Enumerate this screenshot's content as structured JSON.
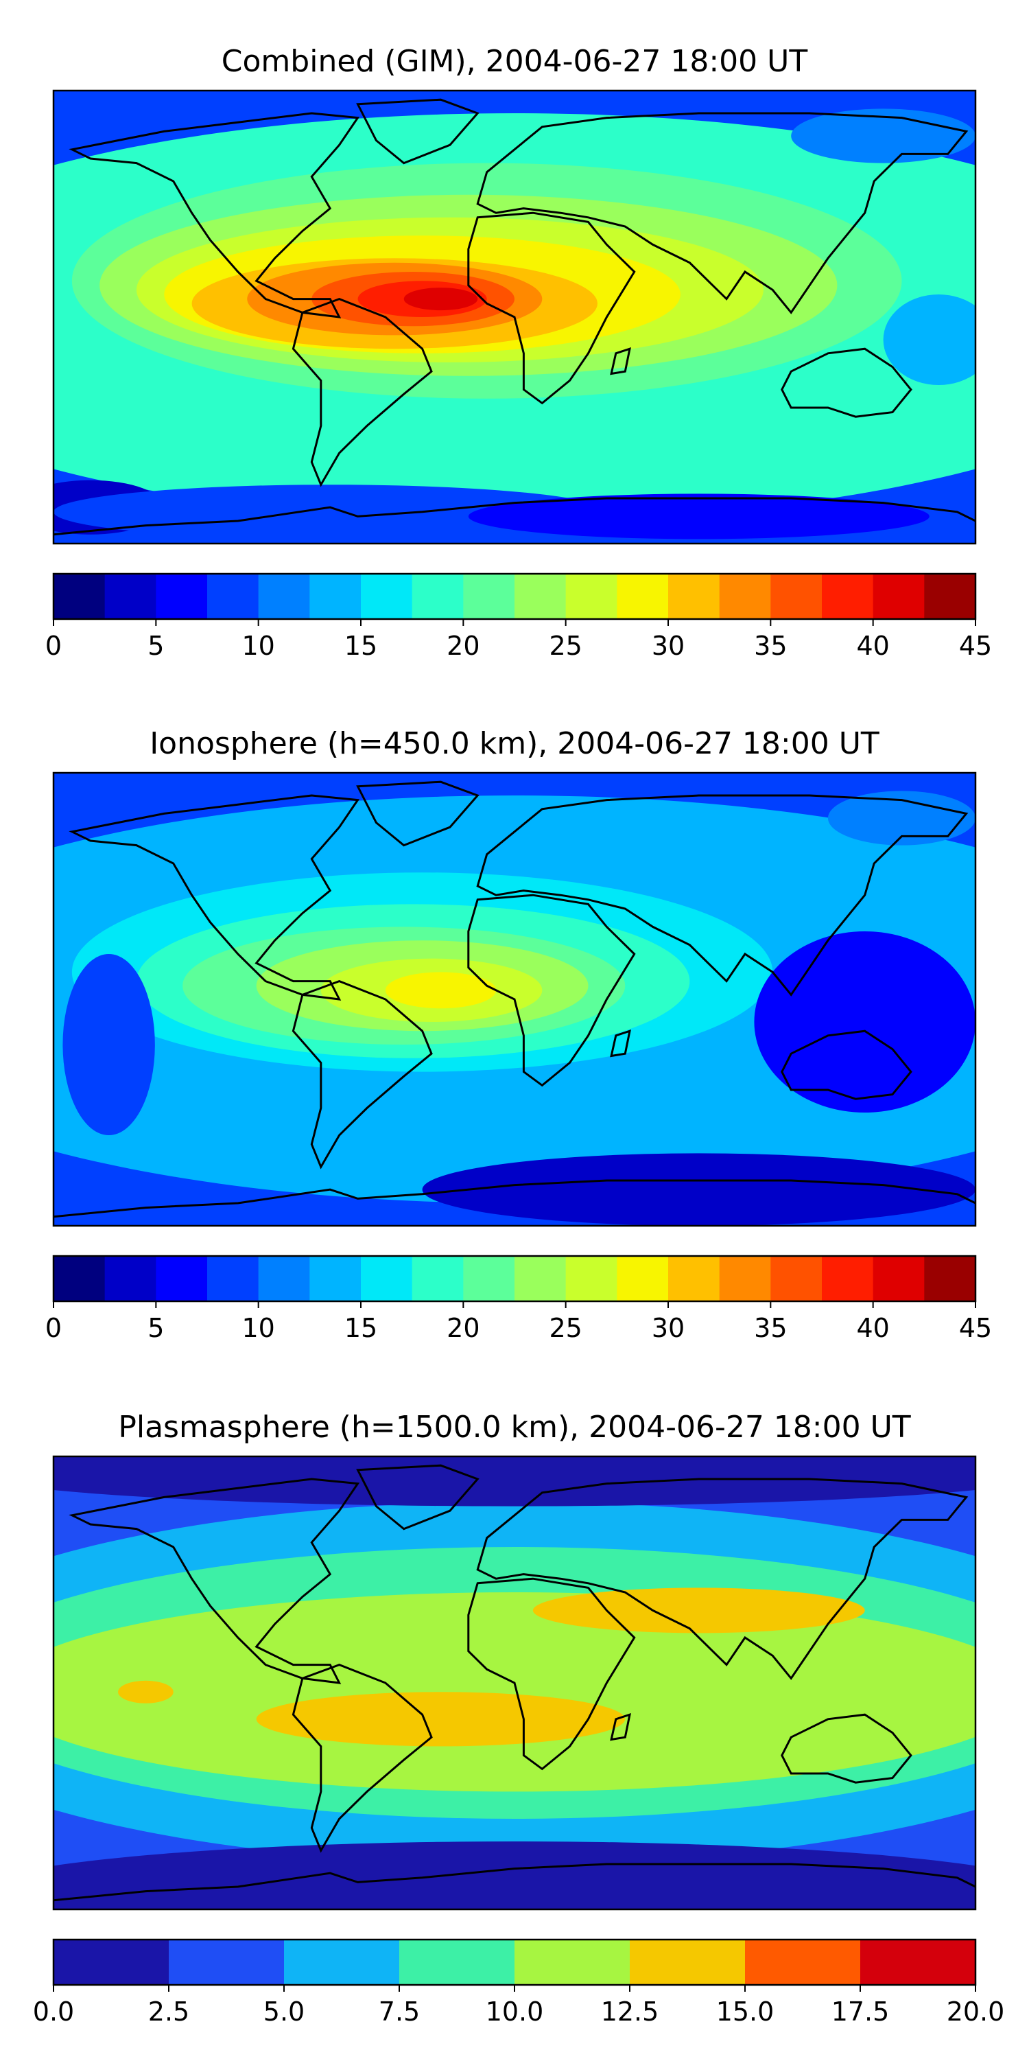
{
  "colors": {
    "jet9": [
      "#1a15a8",
      "#1f4ef5",
      "#0fb4f6",
      "#3df0a6",
      "#a7f541",
      "#f5c800",
      "#ff5a00",
      "#d4000c"
    ],
    "jet18": [
      "#00007f",
      "#0000c8",
      "#0000ff",
      "#0040ff",
      "#0080ff",
      "#00b4ff",
      "#00e8f8",
      "#2cffc9",
      "#5cff9a",
      "#9aff5c",
      "#c9ff2c",
      "#f8f500",
      "#ffc000",
      "#ff8900",
      "#ff5200",
      "#ff1e00",
      "#df0000",
      "#9a0000"
    ],
    "ocean_base": "#00b4ff",
    "coast": "#000000"
  },
  "chart_data": [
    {
      "type": "heatmap",
      "title": "Combined (GIM), 2004-06-27 18:00 UT",
      "colorbar": {
        "ticks": [
          "0",
          "5",
          "10",
          "15",
          "20",
          "25",
          "30",
          "35",
          "40",
          "45"
        ],
        "levels": [
          0,
          2.5,
          5,
          7.5,
          10,
          12.5,
          15,
          17.5,
          20,
          22.5,
          25,
          27.5,
          30,
          32.5,
          35,
          37.5,
          40,
          42.5,
          45
        ]
      },
      "peak_value": 42,
      "peak_region": "tropical South America / equatorial Atlantic",
      "background_value": 8
    },
    {
      "type": "heatmap",
      "title": "Ionosphere  (h=450.0 km), 2004-06-27 18:00 UT",
      "colorbar": {
        "ticks": [
          "0",
          "5",
          "10",
          "15",
          "20",
          "25",
          "30",
          "35",
          "40",
          "45"
        ],
        "levels": [
          0,
          2.5,
          5,
          7.5,
          10,
          12.5,
          15,
          17.5,
          20,
          22.5,
          25,
          27.5,
          30,
          32.5,
          35,
          37.5,
          40,
          42.5,
          45
        ]
      },
      "peak_value": 30,
      "peak_region": "northern South America",
      "background_value": 6
    },
    {
      "type": "heatmap",
      "title": "Plasmasphere (h=1500.0 km), 2004-06-27 18:00 UT",
      "colorbar": {
        "ticks": [
          "0.0",
          "2.5",
          "5.0",
          "7.5",
          "10.0",
          "12.5",
          "15.0",
          "17.5",
          "20.0"
        ],
        "levels": [
          0,
          2.5,
          5,
          7.5,
          10,
          12.5,
          15,
          17.5,
          20
        ]
      },
      "peak_value": 15,
      "peak_region": "northern Africa / Middle East / South Atlantic",
      "background_value": 2
    }
  ]
}
